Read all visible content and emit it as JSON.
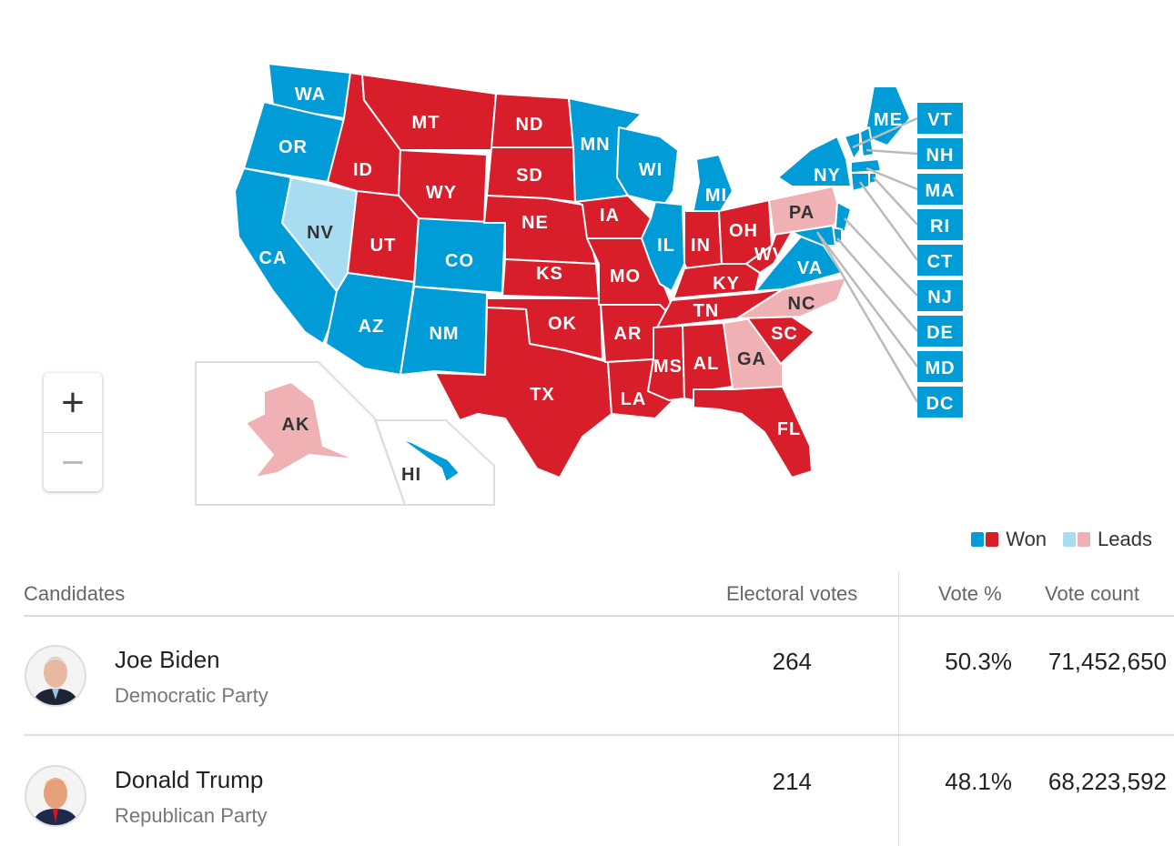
{
  "colors": {
    "dem-won": "#009cd8",
    "rep-won": "#d71e2a",
    "dem-leads": "#a7dcf1",
    "rep-leads": "#f0b1b5"
  },
  "states": {
    "WA": "dem-won",
    "OR": "dem-won",
    "CA": "dem-won",
    "NV": "dem-leads",
    "ID": "rep-won",
    "MT": "rep-won",
    "WY": "rep-won",
    "UT": "rep-won",
    "CO": "dem-won",
    "AZ": "dem-won",
    "NM": "dem-won",
    "ND": "rep-won",
    "SD": "rep-won",
    "NE": "rep-won",
    "KS": "rep-won",
    "OK": "rep-won",
    "TX": "rep-won",
    "MN": "dem-won",
    "IA": "rep-won",
    "MO": "rep-won",
    "AR": "rep-won",
    "LA": "rep-won",
    "WI": "dem-won",
    "IL": "dem-won",
    "MI": "dem-won",
    "IN": "rep-won",
    "OH": "rep-won",
    "KY": "rep-won",
    "TN": "rep-won",
    "MS": "rep-won",
    "AL": "rep-won",
    "GA": "rep-leads",
    "FL": "rep-won",
    "SC": "rep-won",
    "NC": "rep-leads",
    "VA": "dem-won",
    "WV": "rep-won",
    "PA": "rep-leads",
    "NY": "dem-won",
    "ME": "dem-won",
    "AK": "rep-leads",
    "HI": "dem-won"
  },
  "callouts": [
    "VT",
    "NH",
    "MA",
    "RI",
    "CT",
    "NJ",
    "DE",
    "MD",
    "DC"
  ],
  "zoom": {
    "in": "+",
    "out": "−"
  },
  "legend": {
    "won": "Won",
    "leads": "Leads"
  },
  "table": {
    "headers": {
      "candidates": "Candidates",
      "electoral": "Electoral votes",
      "pct": "Vote %",
      "count": "Vote count"
    },
    "rows": [
      {
        "name": "Joe Biden",
        "party": "Democratic Party",
        "electoral": "264",
        "pct": "50.3%",
        "count": "71,452,650"
      },
      {
        "name": "Donald Trump",
        "party": "Republican Party",
        "electoral": "214",
        "pct": "48.1%",
        "count": "68,223,592"
      }
    ]
  }
}
